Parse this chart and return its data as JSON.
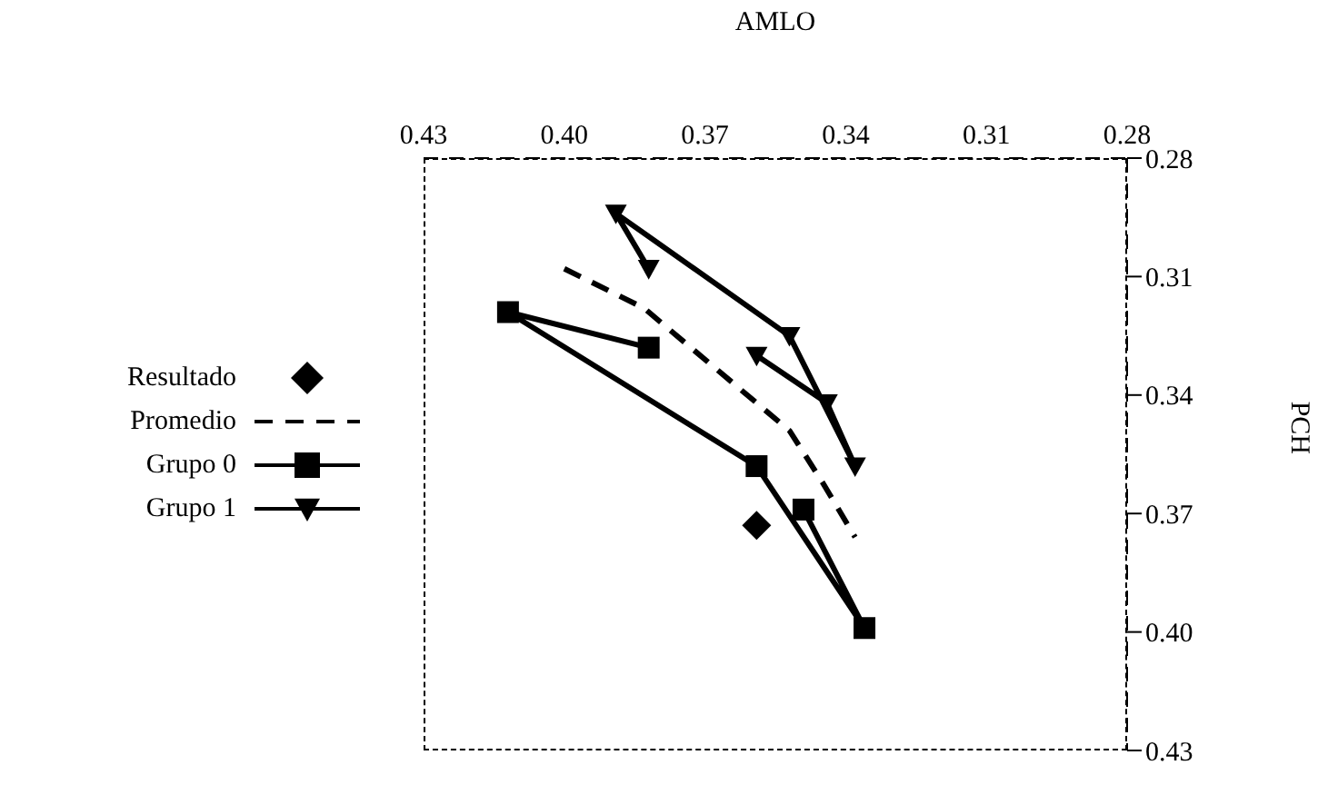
{
  "chart_data": {
    "type": "line",
    "xlabel": "AMLO",
    "ylabel": "PCH",
    "xlim": [
      0.43,
      0.28
    ],
    "xticks": [
      {
        "value": 0.28,
        "label": "0.28"
      },
      0.31,
      0.34,
      0.37,
      {
        "value": 0.4,
        "label": "0.40"
      },
      0.43
    ],
    "ylim": [
      0.43,
      0.28
    ],
    "yticks": [
      {
        "value": 0.28,
        "label": "0.28"
      },
      0.31,
      0.34,
      0.37,
      {
        "value": 0.4,
        "label": "0.40"
      },
      0.43
    ],
    "grid": false,
    "legend": "left",
    "series": [
      {
        "name": "Resultado",
        "type": "scatter",
        "color": "#000000",
        "marker": "diamond",
        "x": [
          0.359
        ],
        "values": [
          0.373
        ]
      },
      {
        "name": "Promedio",
        "color": "#000000",
        "marker": "none",
        "line_style": "dashed",
        "x": [
          0.4,
          0.383,
          0.369,
          0.352,
          0.345,
          0.338
        ],
        "values": [
          0.308,
          0.318,
          0.332,
          0.349,
          0.362,
          0.376
        ]
      },
      {
        "name": "Grupo 0",
        "color": "#000000",
        "marker": "square",
        "line_style": "solid",
        "x": [
          0.382,
          0.412,
          0.359,
          0.336,
          0.349
        ],
        "values": [
          0.328,
          0.319,
          0.358,
          0.399,
          0.369
        ]
      },
      {
        "name": "Grupo 1",
        "color": "#000000",
        "marker": "triangle",
        "line_style": "solid",
        "x": [
          0.382,
          0.389,
          0.352,
          0.338,
          0.344,
          0.359
        ],
        "values": [
          0.308,
          0.294,
          0.325,
          0.358,
          0.342,
          0.33
        ]
      }
    ]
  }
}
